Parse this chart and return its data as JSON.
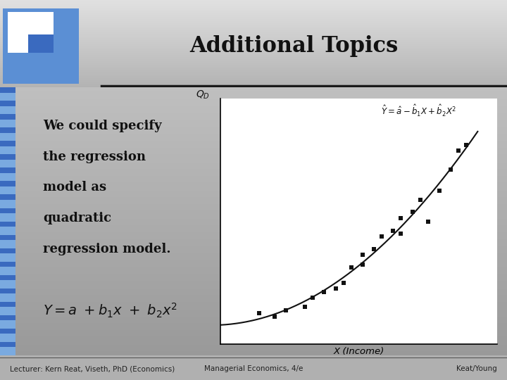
{
  "title": "Additional Topics",
  "title_fontsize": 22,
  "title_color": "#111111",
  "footer_texts": [
    "Lecturer: Kern Reat, Viseth, PhD (Economics)",
    "Managerial Economics, 4/e",
    "Keat/Young"
  ],
  "body_text_lines": [
    "We could specify",
    "the regression",
    "model as",
    "quadratic",
    "regression model."
  ],
  "scatter_x": [
    1.8,
    2.2,
    2.5,
    3.0,
    3.2,
    3.5,
    3.8,
    4.0,
    4.2,
    4.5,
    4.5,
    4.8,
    5.0,
    5.3,
    5.5,
    5.5,
    5.8,
    6.0,
    6.2,
    6.5,
    6.8,
    7.0,
    7.2
  ],
  "scatter_y": [
    1.5,
    1.4,
    1.6,
    1.7,
    2.0,
    2.2,
    2.3,
    2.5,
    3.0,
    3.1,
    3.4,
    3.6,
    4.0,
    4.2,
    4.1,
    4.6,
    4.8,
    5.2,
    4.5,
    5.5,
    6.2,
    6.8,
    7.0
  ],
  "scatter_color": "#111111",
  "scatter_size": 22,
  "curve_color": "#111111",
  "xlabel": "X (Income)",
  "logo_box_color": "#4472c4",
  "header_light": 0.88,
  "header_dark": 0.7,
  "body_light": 0.75,
  "body_dark": 0.6,
  "footer_color": "#d4d4d4",
  "stripe_color": "#5b8fd4"
}
